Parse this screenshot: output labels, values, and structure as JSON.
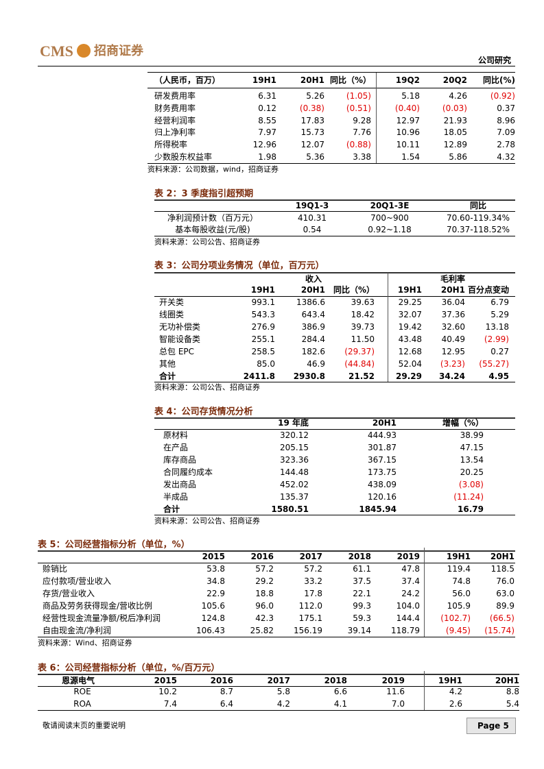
{
  "header": {
    "logo": "CMS",
    "brand": "招商证券",
    "section": "公司研究"
  },
  "tables": [
    {
      "corner": "（人民币，百万）",
      "columns": [
        "19H1",
        "20H1",
        "同比（%）",
        "19Q2",
        "20Q2",
        "同比(%)"
      ],
      "rows": [
        [
          "研发费用率",
          "6.31",
          "5.26",
          "(1.05)",
          "5.18",
          "4.26",
          "(0.92)"
        ],
        [
          "财务费用率",
          "0.12",
          "(0.38)",
          "(0.51)",
          "(0.40)",
          "(0.03)",
          "0.37"
        ],
        [
          "经营利润率",
          "8.55",
          "17.83",
          "9.28",
          "12.97",
          "21.93",
          "8.96"
        ],
        [
          "归上净利率",
          "7.97",
          "15.73",
          "7.76",
          "10.96",
          "18.05",
          "7.09"
        ],
        [
          "所得税率",
          "12.96",
          "12.07",
          "(0.88)",
          "10.11",
          "12.89",
          "2.78"
        ],
        [
          "少数股东权益率",
          "1.98",
          "5.36",
          "3.38",
          "1.54",
          "5.86",
          "4.32"
        ]
      ],
      "source": "资料来源：公司数据，wind，招商证券"
    },
    {
      "title": "表 2：3 季度指引超预期",
      "columns": [
        "19Q1-3",
        "20Q1-3E",
        "同比"
      ],
      "rows": [
        [
          "净利润预计数（百万元）",
          "410.31",
          "700~900",
          "70.60-119.34%"
        ],
        [
          "基本每股收益(元/股)",
          "0.54",
          "0.92~1.18",
          "70.37-118.52%"
        ]
      ],
      "source": "资料来源：公司公告、招商证券"
    },
    {
      "title": "表 3：公司分项业务情况（单位，百万元）",
      "groups": [
        "收入",
        "毛利率"
      ],
      "columns": [
        "19H1",
        "20H1",
        "同比（%）",
        "19H1",
        "20H1",
        "百分点变动"
      ],
      "rows": [
        [
          "开关类",
          "993.1",
          "1386.6",
          "39.63",
          "29.25",
          "36.04",
          "6.79"
        ],
        [
          "线圈类",
          "543.3",
          "643.4",
          "18.42",
          "32.07",
          "37.36",
          "5.29"
        ],
        [
          "无功补偿类",
          "276.9",
          "386.9",
          "39.73",
          "19.42",
          "32.60",
          "13.18"
        ],
        [
          "智能设备类",
          "255.1",
          "284.4",
          "11.50",
          "43.48",
          "40.49",
          "(2.99)"
        ],
        [
          "总包 EPC",
          "258.5",
          "182.6",
          "(29.37)",
          "12.68",
          "12.95",
          "0.27"
        ],
        [
          "其他",
          "85.0",
          "46.9",
          "(44.84)",
          "52.04",
          "(3.23)",
          "(55.27)"
        ]
      ],
      "total": [
        "合计",
        "2411.8",
        "2930.8",
        "21.52",
        "29.29",
        "34.24",
        "4.95"
      ],
      "source": "资料来源：公司公告、招商证券"
    },
    {
      "title": "表 4：公司存货情况分析",
      "columns": [
        "19 年底",
        "20H1",
        "增幅（%）"
      ],
      "rows": [
        [
          "原材料",
          "320.12",
          "444.93",
          "38.99"
        ],
        [
          "在产品",
          "205.15",
          "301.87",
          "47.15"
        ],
        [
          "库存商品",
          "323.36",
          "367.15",
          "13.54"
        ],
        [
          "合同履约成本",
          "144.48",
          "173.75",
          "20.25"
        ],
        [
          "发出商品",
          "452.02",
          "438.09",
          "(3.08)"
        ],
        [
          "半成品",
          "135.37",
          "120.16",
          "(11.24)"
        ]
      ],
      "total": [
        "合计",
        "1580.51",
        "1845.94",
        "16.79"
      ],
      "source": "资料来源：公司公告、招商证券"
    },
    {
      "title": "表 5：公司经营指标分析（单位，%）",
      "columns": [
        "2015",
        "2016",
        "2017",
        "2018",
        "2019",
        "19H1",
        "20H1"
      ],
      "rows": [
        [
          "赊销比",
          "53.8",
          "57.2",
          "57.2",
          "61.1",
          "47.8",
          "119.4",
          "118.5"
        ],
        [
          "应付款项/营业收入",
          "34.8",
          "29.2",
          "33.2",
          "37.5",
          "37.4",
          "74.8",
          "76.0"
        ],
        [
          "存货/营业收入",
          "22.9",
          "18.8",
          "17.8",
          "22.1",
          "24.2",
          "56.0",
          "63.0"
        ],
        [
          "商品及劳务获得现金/营收比例",
          "105.6",
          "96.0",
          "112.0",
          "99.3",
          "104.0",
          "105.9",
          "89.9"
        ],
        [
          "经营性现金流量净额/税后净利润",
          "124.8",
          "42.3",
          "175.1",
          "59.3",
          "144.4",
          "(102.7)",
          "(66.5)"
        ],
        [
          "自由现金流/净利润",
          "106.43",
          "25.82",
          "156.19",
          "39.14",
          "118.79",
          "(9.45)",
          "(15.74)"
        ]
      ],
      "source": "资料来源：Wind、招商证券"
    },
    {
      "title": "表 6：公司经营指标分析（单位，%/百万元）",
      "corner": "恩源电气",
      "columns": [
        "2015",
        "2016",
        "2017",
        "2018",
        "2019",
        "19H1",
        "20H1"
      ],
      "rows": [
        [
          "ROE",
          "10.2",
          "8.7",
          "5.8",
          "6.6",
          "11.6",
          "4.2",
          "8.8"
        ],
        [
          "ROA",
          "7.4",
          "6.4",
          "4.2",
          "4.1",
          "7.0",
          "2.6",
          "5.4"
        ]
      ]
    }
  ],
  "footer": {
    "note": "敬请阅读末页的重要说明",
    "page": "Page 5"
  }
}
